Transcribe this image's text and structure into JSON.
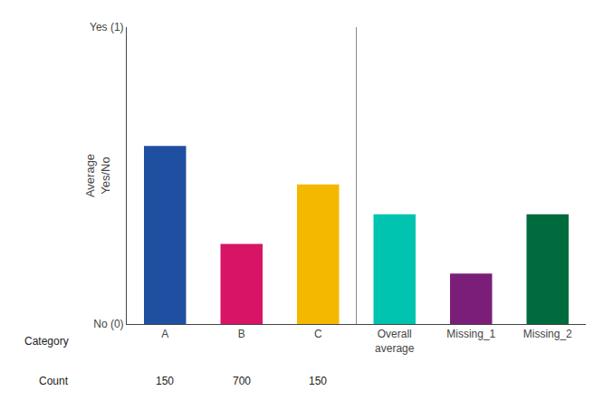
{
  "chart_data": {
    "type": "bar",
    "categories": [
      "A",
      "B",
      "C",
      "Overall\naverage",
      "Missing_1",
      "Missing_2"
    ],
    "values": [
      0.6,
      0.27,
      0.47,
      0.37,
      0.17,
      0.37
    ],
    "colors": [
      "#1F4FA0",
      "#D81466",
      "#F5B800",
      "#00C4B0",
      "#7B1E7A",
      "#006B3C"
    ],
    "ylabel": "Average\nYes/No",
    "ylim": [
      0,
      1.0
    ],
    "yticks": [
      {
        "value": 0,
        "label": "No (0)"
      },
      {
        "value": 1,
        "label": "Yes (1)"
      }
    ],
    "grid": false,
    "table": {
      "row_labels": [
        "Category",
        "Count"
      ],
      "columns": [
        "A",
        "B",
        "C"
      ],
      "counts": [
        150,
        700,
        150
      ]
    }
  }
}
